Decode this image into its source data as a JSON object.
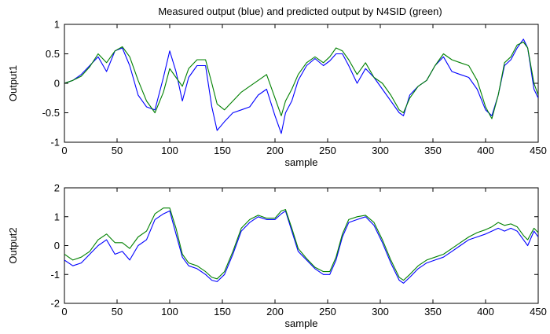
{
  "figure": {
    "title": "Measured output (blue) and predicted output by N4SID (green)",
    "background": "#ffffff"
  },
  "colors": {
    "measured": "#0000ff",
    "predicted": "#008000",
    "axes": "#000000"
  },
  "chart_data": [
    {
      "type": "line",
      "title": "Measured output (blue) and predicted output by N4SID (green)",
      "xlabel": "sample",
      "ylabel": "Output1",
      "xlim": [
        0,
        450
      ],
      "ylim": [
        -1,
        1
      ],
      "xticks": [
        0,
        50,
        100,
        150,
        200,
        250,
        300,
        350,
        400,
        450
      ],
      "yticks": [
        -1,
        -0.5,
        0,
        0.5,
        1
      ],
      "grid": false,
      "series": [
        {
          "color": "#0000ff",
          "x": [
            0,
            8,
            16,
            24,
            32,
            40,
            48,
            55,
            62,
            70,
            78,
            86,
            94,
            100,
            106,
            112,
            118,
            126,
            134,
            140,
            145,
            152,
            160,
            168,
            176,
            184,
            192,
            200,
            206,
            210,
            216,
            222,
            230,
            238,
            246,
            252,
            258,
            264,
            270,
            278,
            286,
            294,
            302,
            310,
            318,
            322,
            328,
            336,
            344,
            352,
            360,
            368,
            376,
            384,
            392,
            400,
            406,
            412,
            418,
            424,
            430,
            436,
            440,
            446,
            450
          ],
          "y": [
            0,
            0.05,
            0.15,
            0.3,
            0.45,
            0.2,
            0.55,
            0.6,
            0.3,
            -0.2,
            -0.4,
            -0.45,
            0.1,
            0.55,
            0.2,
            -0.3,
            0.1,
            0.3,
            0.3,
            -0.4,
            -0.8,
            -0.65,
            -0.5,
            -0.45,
            -0.4,
            -0.2,
            -0.1,
            -0.55,
            -0.85,
            -0.5,
            -0.3,
            0.05,
            0.3,
            0.42,
            0.3,
            0.38,
            0.5,
            0.5,
            0.3,
            0,
            0.25,
            0.1,
            -0.1,
            -0.3,
            -0.5,
            -0.55,
            -0.2,
            -0.05,
            0.05,
            0.3,
            0.45,
            0.2,
            0.15,
            0.1,
            -0.1,
            -0.45,
            -0.55,
            -0.2,
            0.3,
            0.4,
            0.6,
            0.75,
            0.6,
            -0.1,
            -0.25
          ]
        },
        {
          "color": "#008000",
          "x": [
            0,
            8,
            16,
            24,
            32,
            40,
            48,
            55,
            62,
            70,
            78,
            86,
            94,
            100,
            106,
            112,
            118,
            126,
            134,
            140,
            145,
            152,
            160,
            168,
            176,
            184,
            192,
            200,
            206,
            210,
            216,
            222,
            230,
            238,
            246,
            252,
            258,
            264,
            270,
            278,
            286,
            294,
            302,
            310,
            318,
            322,
            328,
            336,
            344,
            352,
            360,
            368,
            376,
            384,
            392,
            400,
            406,
            412,
            418,
            424,
            430,
            436,
            440,
            446,
            450
          ],
          "y": [
            0,
            0.05,
            0.12,
            0.28,
            0.5,
            0.35,
            0.55,
            0.62,
            0.45,
            0.05,
            -0.3,
            -0.5,
            -0.15,
            0.25,
            0.1,
            -0.05,
            0.25,
            0.4,
            0.4,
            0,
            -0.35,
            -0.45,
            -0.3,
            -0.15,
            -0.05,
            0.05,
            0.15,
            -0.25,
            -0.55,
            -0.3,
            -0.1,
            0.15,
            0.35,
            0.45,
            0.35,
            0.45,
            0.6,
            0.55,
            0.4,
            0.15,
            0.35,
            0.1,
            0,
            -0.2,
            -0.45,
            -0.5,
            -0.25,
            -0.05,
            0.05,
            0.3,
            0.5,
            0.4,
            0.35,
            0.3,
            0.05,
            -0.4,
            -0.6,
            -0.2,
            0.35,
            0.45,
            0.65,
            0.7,
            0.6,
            0,
            -0.2
          ]
        }
      ]
    },
    {
      "type": "line",
      "title": "",
      "xlabel": "sample",
      "ylabel": "Output2",
      "xlim": [
        0,
        450
      ],
      "ylim": [
        -2,
        2
      ],
      "xticks": [
        0,
        50,
        100,
        150,
        200,
        250,
        300,
        350,
        400,
        450
      ],
      "yticks": [
        -2,
        -1,
        0,
        1,
        2
      ],
      "grid": false,
      "series": [
        {
          "color": "#0000ff",
          "x": [
            0,
            8,
            16,
            24,
            32,
            40,
            48,
            55,
            62,
            70,
            78,
            86,
            94,
            100,
            106,
            112,
            118,
            126,
            134,
            140,
            145,
            152,
            160,
            168,
            176,
            184,
            192,
            200,
            206,
            210,
            216,
            222,
            230,
            238,
            246,
            252,
            258,
            264,
            270,
            278,
            286,
            294,
            302,
            310,
            318,
            322,
            328,
            336,
            344,
            352,
            360,
            368,
            376,
            384,
            392,
            400,
            406,
            412,
            418,
            424,
            430,
            436,
            440,
            446,
            450
          ],
          "y": [
            -0.5,
            -0.7,
            -0.6,
            -0.3,
            0,
            0.2,
            -0.3,
            -0.2,
            -0.5,
            0,
            0.2,
            0.9,
            1.1,
            1.2,
            0.4,
            -0.4,
            -0.7,
            -0.8,
            -1,
            -1.2,
            -1.25,
            -1,
            -0.3,
            0.5,
            0.8,
            1,
            0.9,
            0.9,
            1.1,
            1.2,
            0.5,
            -0.2,
            -0.5,
            -0.8,
            -1,
            -1,
            -0.5,
            0.3,
            0.8,
            0.9,
            1,
            0.7,
            0.1,
            -0.6,
            -1.2,
            -1.3,
            -1.1,
            -0.8,
            -0.6,
            -0.5,
            -0.4,
            -0.2,
            0,
            0.2,
            0.3,
            0.4,
            0.5,
            0.6,
            0.5,
            0.6,
            0.5,
            0.2,
            0,
            0.5,
            0.3
          ]
        },
        {
          "color": "#008000",
          "x": [
            0,
            8,
            16,
            24,
            32,
            40,
            48,
            55,
            62,
            70,
            78,
            86,
            94,
            100,
            106,
            112,
            118,
            126,
            134,
            140,
            145,
            152,
            160,
            168,
            176,
            184,
            192,
            200,
            206,
            210,
            216,
            222,
            230,
            238,
            246,
            252,
            258,
            264,
            270,
            278,
            286,
            294,
            302,
            310,
            318,
            322,
            328,
            336,
            344,
            352,
            360,
            368,
            376,
            384,
            392,
            400,
            406,
            412,
            418,
            424,
            430,
            436,
            440,
            446,
            450
          ],
          "y": [
            -0.3,
            -0.5,
            -0.4,
            -0.2,
            0.2,
            0.4,
            0.1,
            0.1,
            -0.1,
            0.3,
            0.5,
            1.1,
            1.3,
            1.3,
            0.6,
            -0.3,
            -0.6,
            -0.7,
            -0.9,
            -1.1,
            -1.15,
            -0.9,
            -0.2,
            0.6,
            0.9,
            1.05,
            0.95,
            0.95,
            1.2,
            1.25,
            0.6,
            -0.1,
            -0.45,
            -0.75,
            -0.9,
            -0.9,
            -0.4,
            0.4,
            0.9,
            1,
            1.05,
            0.8,
            0.2,
            -0.5,
            -1.1,
            -1.2,
            -1,
            -0.7,
            -0.5,
            -0.4,
            -0.3,
            -0.1,
            0.1,
            0.3,
            0.45,
            0.55,
            0.65,
            0.8,
            0.7,
            0.75,
            0.65,
            0.35,
            0.2,
            0.6,
            0.45
          ]
        }
      ]
    }
  ]
}
